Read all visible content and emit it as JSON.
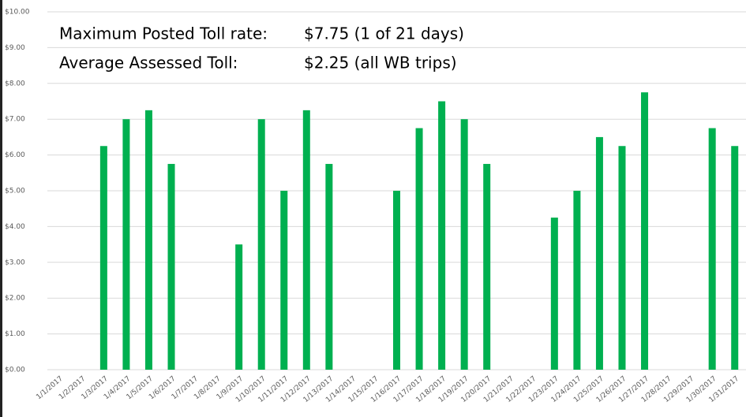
{
  "chart_data": {
    "type": "bar",
    "annotations": [
      {
        "label": "Maximum Posted Toll rate:",
        "text": "$7.75 (1 of 21 days)"
      },
      {
        "label": "Average Assessed Toll:",
        "text": "$2.25 (all WB trips)"
      }
    ],
    "categories": [
      "1/1/2017",
      "1/2/2017",
      "1/3/2017",
      "1/4/2017",
      "1/5/2017",
      "1/6/2017",
      "1/7/2017",
      "1/8/2017",
      "1/9/2017",
      "1/10/2017",
      "1/11/2017",
      "1/12/2017",
      "1/13/2017",
      "1/14/2017",
      "1/15/2017",
      "1/16/2017",
      "1/17/2017",
      "1/18/2017",
      "1/19/2017",
      "1/20/2017",
      "1/21/2017",
      "1/22/2017",
      "1/23/2017",
      "1/24/2017",
      "1/25/2017",
      "1/26/2017",
      "1/27/2017",
      "1/28/2017",
      "1/29/2017",
      "1/30/2017",
      "1/31/2017"
    ],
    "values": [
      0,
      0,
      6.25,
      7.0,
      7.25,
      5.75,
      0,
      0,
      3.5,
      7.0,
      5.0,
      7.25,
      5.75,
      0,
      0,
      5.0,
      6.75,
      7.5,
      7.0,
      5.75,
      0,
      0,
      4.25,
      5.0,
      6.5,
      6.25,
      7.75,
      0,
      0,
      6.75,
      6.25
    ],
    "color": "#00b050",
    "ylim": [
      0,
      10
    ],
    "yticks": [
      {
        "value": 0,
        "label": "$0.00"
      },
      {
        "value": 1,
        "label": "$1.00"
      },
      {
        "value": 2,
        "label": "$2.00"
      },
      {
        "value": 3,
        "label": "$3.00"
      },
      {
        "value": 4,
        "label": "$4.00"
      },
      {
        "value": 5,
        "label": "$5.00"
      },
      {
        "value": 6,
        "label": "$6.00"
      },
      {
        "value": 7,
        "label": "$7.00"
      },
      {
        "value": 8,
        "label": "$8.00"
      },
      {
        "value": 9,
        "label": "$9.00"
      },
      {
        "value": 10,
        "label": "$10.00"
      }
    ],
    "grid": true
  }
}
